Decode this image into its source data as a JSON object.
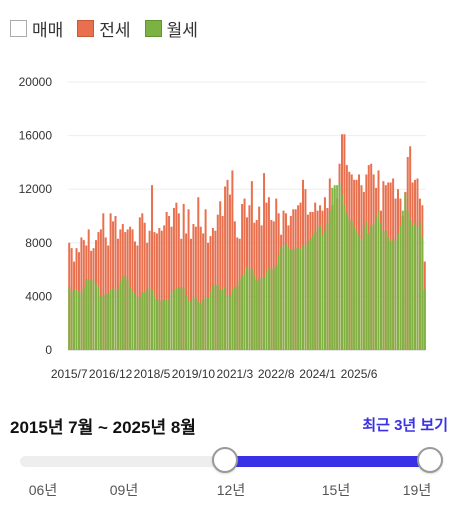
{
  "legend": [
    {
      "label": "매매",
      "color": "#ffffff"
    },
    {
      "label": "전세",
      "color": "#e8704e"
    },
    {
      "label": "월세",
      "color": "#7bb342"
    }
  ],
  "chart_data": {
    "type": "bar",
    "ylim": [
      0,
      20000
    ],
    "yticks": [
      "0",
      "4000",
      "8000",
      "12000",
      "16000",
      "20000"
    ],
    "xticks": [
      "2015/7",
      "2016/12",
      "2018/5",
      "2019/10",
      "2021/3",
      "2022/8",
      "2024/1",
      "2025/6"
    ],
    "start": "2015/7",
    "series": [
      {
        "name": "매매",
        "values": []
      },
      {
        "name": "전세",
        "values": [
          8000,
          7600,
          6600,
          7600,
          7300,
          8400,
          8200,
          7800,
          9000,
          7400,
          7600,
          8200,
          8800,
          9000,
          10200,
          8400,
          7800,
          10200,
          9600,
          10000,
          8300,
          9000,
          9400,
          8800,
          9000,
          9200,
          9000,
          8100,
          7800,
          9900,
          10200,
          9500,
          8000,
          8900,
          12300,
          8800,
          8700,
          9100,
          8900,
          9300,
          10300,
          10000,
          9200,
          10600,
          11000,
          10200,
          8300,
          10900,
          8700,
          10500,
          8300,
          9400,
          9200,
          11400,
          9200,
          8700,
          10500,
          8000,
          8500,
          9100,
          8900,
          10100,
          11100,
          10000,
          12200,
          12700,
          11600,
          13400,
          9600,
          8400,
          8300,
          10900,
          11300,
          9900,
          10800,
          12600,
          9500,
          9700,
          10700,
          9300,
          13200,
          11000,
          11400,
          9700,
          9600,
          11300,
          10200,
          8600,
          10400,
          10200,
          9300,
          10000,
          10500,
          10500,
          10800,
          11000,
          12700,
          12000,
          10100,
          10300,
          10300,
          11000,
          10400,
          10800,
          10400,
          11400,
          10600,
          12800,
          10800,
          12000,
          11300,
          13900,
          16100,
          16100,
          13800,
          13300,
          13100,
          12700,
          12700,
          13100,
          12300,
          11800,
          13100,
          13800,
          13900,
          13100,
          12100,
          13400,
          10400,
          12600,
          12300,
          12500,
          12500,
          12800,
          11300,
          12000,
          11300,
          10000,
          11800,
          14400,
          15200,
          12500,
          12700,
          12800,
          11300,
          10800,
          6600
        ]
      },
      {
        "name": "월세",
        "values": [
          4700,
          4400,
          4500,
          4500,
          4400,
          4300,
          4700,
          5300,
          5300,
          5200,
          5200,
          4900,
          4700,
          4000,
          4100,
          4200,
          4200,
          4500,
          4600,
          4500,
          4500,
          5100,
          5500,
          5500,
          5200,
          4700,
          4400,
          4200,
          4000,
          3900,
          4300,
          4300,
          4500,
          4600,
          4500,
          4100,
          3800,
          3700,
          3700,
          3800,
          3700,
          3800,
          4300,
          4500,
          4600,
          4700,
          4700,
          4600,
          4100,
          3700,
          3600,
          3900,
          3900,
          3600,
          3500,
          3800,
          3900,
          3900,
          4300,
          4800,
          4800,
          4900,
          4500,
          4500,
          4700,
          4100,
          4000,
          4500,
          4700,
          4800,
          5300,
          5600,
          5700,
          6200,
          6100,
          6000,
          5600,
          5200,
          5300,
          5400,
          5400,
          5800,
          6100,
          6000,
          6100,
          6300,
          7100,
          7600,
          7800,
          7900,
          7700,
          7500,
          7500,
          7600,
          7600,
          7500,
          7800,
          7800,
          8100,
          8300,
          8500,
          8800,
          9200,
          9300,
          8600,
          8900,
          9500,
          10400,
          12100,
          12300,
          12300,
          12400,
          11600,
          10800,
          10200,
          9800,
          9600,
          9200,
          8900,
          8600,
          8300,
          9200,
          9600,
          8700,
          9300,
          9400,
          9900,
          10300,
          9500,
          8900,
          8900,
          8400,
          8100,
          8300,
          8200,
          8700,
          9300,
          10400,
          11700,
          10400,
          9700,
          9300,
          9500,
          9200,
          9600,
          8400,
          4500
        ]
      }
    ]
  },
  "range": {
    "title": "2015년 7월 ~ 2025년 8월",
    "recent": "최근 3년 보기",
    "ticks": [
      "06년",
      "09년",
      "12년",
      "15년",
      "19년"
    ],
    "accent": "#3a31e6",
    "selected_start": 0.5,
    "selected_end": 1.0
  }
}
